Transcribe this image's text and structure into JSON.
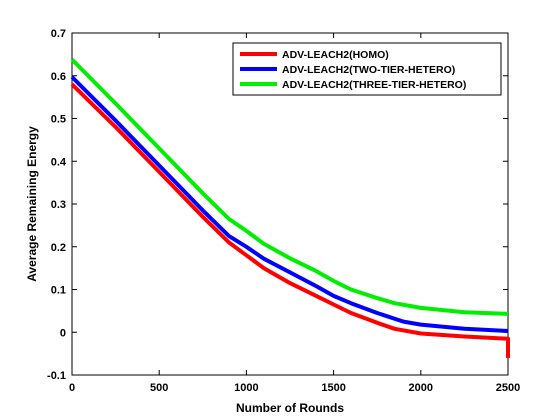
{
  "chart_data": {
    "type": "line",
    "title": "",
    "xlabel": "Number of Rounds",
    "ylabel": "Average Remaining Energy",
    "xlim": [
      0,
      2500
    ],
    "ylim": [
      -0.1,
      0.7
    ],
    "xticks": [
      0,
      500,
      1000,
      1500,
      2000,
      2500
    ],
    "yticks": [
      -0.1,
      0,
      0.1,
      0.2,
      0.3,
      0.4,
      0.5,
      0.6,
      0.7
    ],
    "ytick_labels": [
      "-0.1",
      "0",
      "0.1",
      "0.2",
      "0.3",
      "0.4",
      "0.5",
      "0.6",
      "0.7"
    ],
    "grid": false,
    "legend_position": "top-right",
    "series": [
      {
        "name": "ADV-LEACH2(HOMO)",
        "color": "#ff0000",
        "x": [
          0,
          250,
          500,
          750,
          900,
          1000,
          1100,
          1250,
          1400,
          1500,
          1600,
          1750,
          1850,
          2000,
          2250,
          2500,
          2500
        ],
        "y": [
          0.58,
          0.48,
          0.375,
          0.27,
          0.21,
          0.18,
          0.15,
          0.115,
          0.085,
          0.065,
          0.045,
          0.022,
          0.008,
          -0.003,
          -0.01,
          -0.015,
          -0.06
        ]
      },
      {
        "name": "ADV-LEACH2(TWO-TIER-HETERO)",
        "color": "#0000ff",
        "x": [
          0,
          250,
          500,
          750,
          900,
          1000,
          1100,
          1250,
          1400,
          1500,
          1600,
          1750,
          1900,
          2000,
          2250,
          2500
        ],
        "y": [
          0.597,
          0.495,
          0.39,
          0.285,
          0.225,
          0.2,
          0.172,
          0.14,
          0.108,
          0.085,
          0.068,
          0.045,
          0.025,
          0.018,
          0.008,
          0.003
        ]
      },
      {
        "name": "ADV-LEACH2(THREE-TIER-HETERO)",
        "color": "#00ee00",
        "x": [
          0,
          250,
          500,
          750,
          900,
          1000,
          1100,
          1250,
          1400,
          1500,
          1600,
          1750,
          1850,
          2000,
          2250,
          2500
        ],
        "y": [
          0.638,
          0.535,
          0.43,
          0.325,
          0.265,
          0.237,
          0.207,
          0.173,
          0.143,
          0.12,
          0.1,
          0.08,
          0.068,
          0.057,
          0.047,
          0.043
        ]
      }
    ]
  }
}
